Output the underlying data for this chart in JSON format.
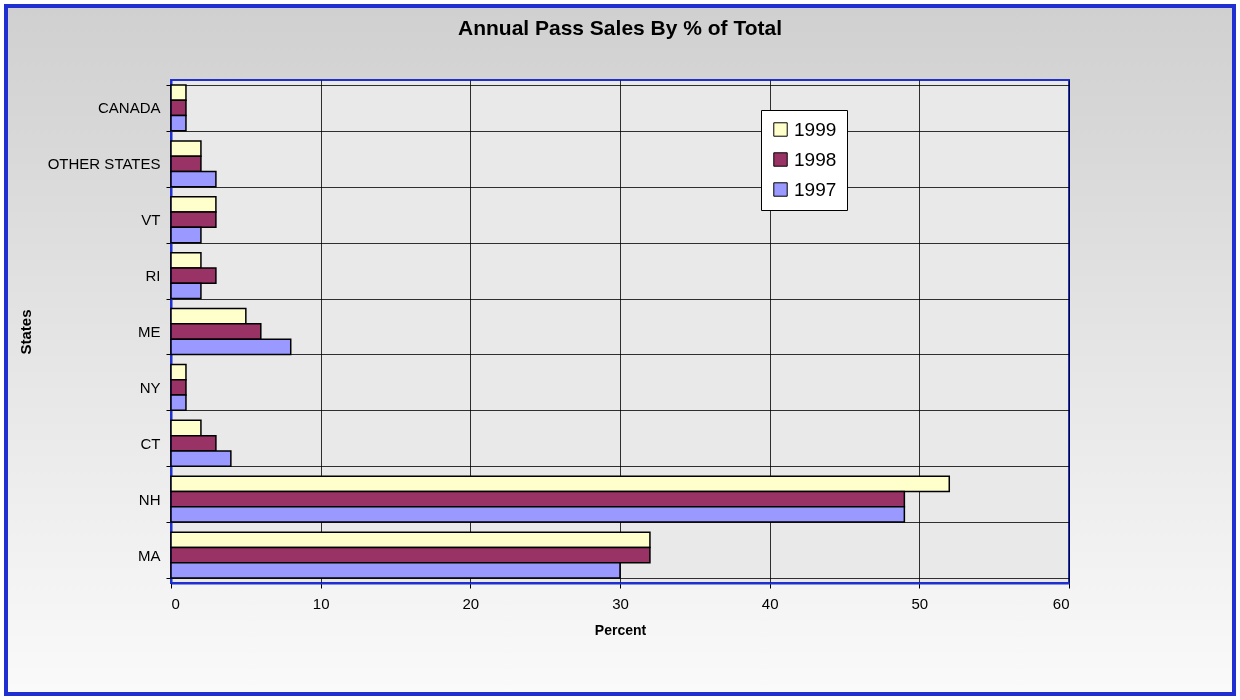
{
  "chart_data": {
    "type": "bar",
    "orientation": "horizontal",
    "title": "Annual Pass Sales By % of Total",
    "xlabel": "Percent",
    "ylabel": "States",
    "categories": [
      "CANADA",
      "OTHER STATES",
      "VT",
      "RI",
      "ME",
      "NY",
      "CT",
      "NH",
      "MA"
    ],
    "series": [
      {
        "name": "1999",
        "color": "#ffffcc",
        "values": [
          1,
          2,
          3,
          2,
          5,
          1,
          2,
          52,
          32
        ]
      },
      {
        "name": "1998",
        "color": "#993366",
        "values": [
          1,
          2,
          3,
          3,
          6,
          1,
          3,
          49,
          32
        ]
      },
      {
        "name": "1997",
        "color": "#9999ff",
        "values": [
          1,
          3,
          2,
          2,
          8,
          1,
          4,
          49,
          30
        ]
      }
    ],
    "xlim": [
      0,
      60
    ],
    "xticks": [
      0,
      10,
      20,
      30,
      40,
      50,
      60
    ],
    "grid": true,
    "legend": "top right"
  }
}
